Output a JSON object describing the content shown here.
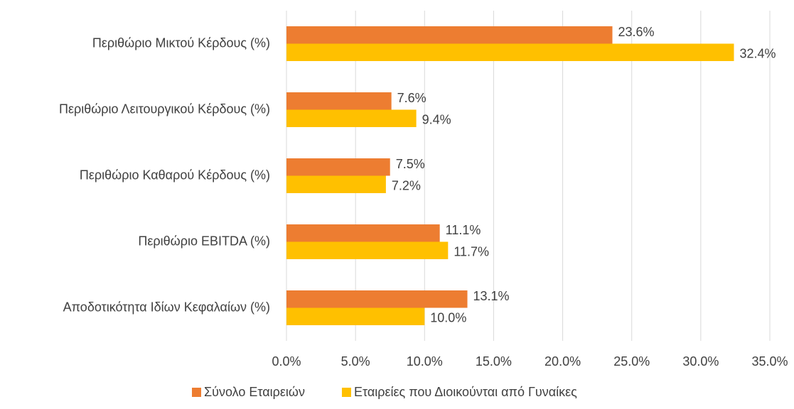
{
  "chart_data": {
    "type": "barh",
    "categories": [
      "Περιθώριο Μικτού Κέρδους (%)",
      "Περιθώριο Λειτουργικού Κέρδους (%)",
      "Περιθώριο Καθαρού Κέρδους (%)",
      "Περιθώριο EBITDA (%)",
      "Αποδοτικότητα Ιδίων Κεφαλαίων (%)"
    ],
    "series": [
      {
        "name": "Σύνολο Εταιρειών",
        "color": "#ED7D31",
        "values": [
          23.6,
          7.6,
          7.5,
          11.1,
          13.1
        ],
        "value_labels": [
          "23.6%",
          "7.6%",
          "7.5%",
          "11.1%",
          "13.1%"
        ]
      },
      {
        "name": "Εταιρείες που Διοικούνται από Γυναίκες",
        "color": "#FFC000",
        "values": [
          32.4,
          9.4,
          7.2,
          11.7,
          10.0
        ],
        "value_labels": [
          "32.4%",
          "9.4%",
          "7.2%",
          "11.7%",
          "10.0%"
        ]
      }
    ],
    "xlim": [
      0,
      35
    ],
    "xticks": [
      {
        "value": 0,
        "label": "0.0%"
      },
      {
        "value": 5,
        "label": "5.0%"
      },
      {
        "value": 10,
        "label": "10.0%"
      },
      {
        "value": 15,
        "label": "15.0%"
      },
      {
        "value": 20,
        "label": "20.0%"
      },
      {
        "value": 25,
        "label": "25.0%"
      },
      {
        "value": 30,
        "label": "30.0%"
      },
      {
        "value": 35,
        "label": "35.0%"
      }
    ],
    "grid": true,
    "legend": "bottom"
  }
}
